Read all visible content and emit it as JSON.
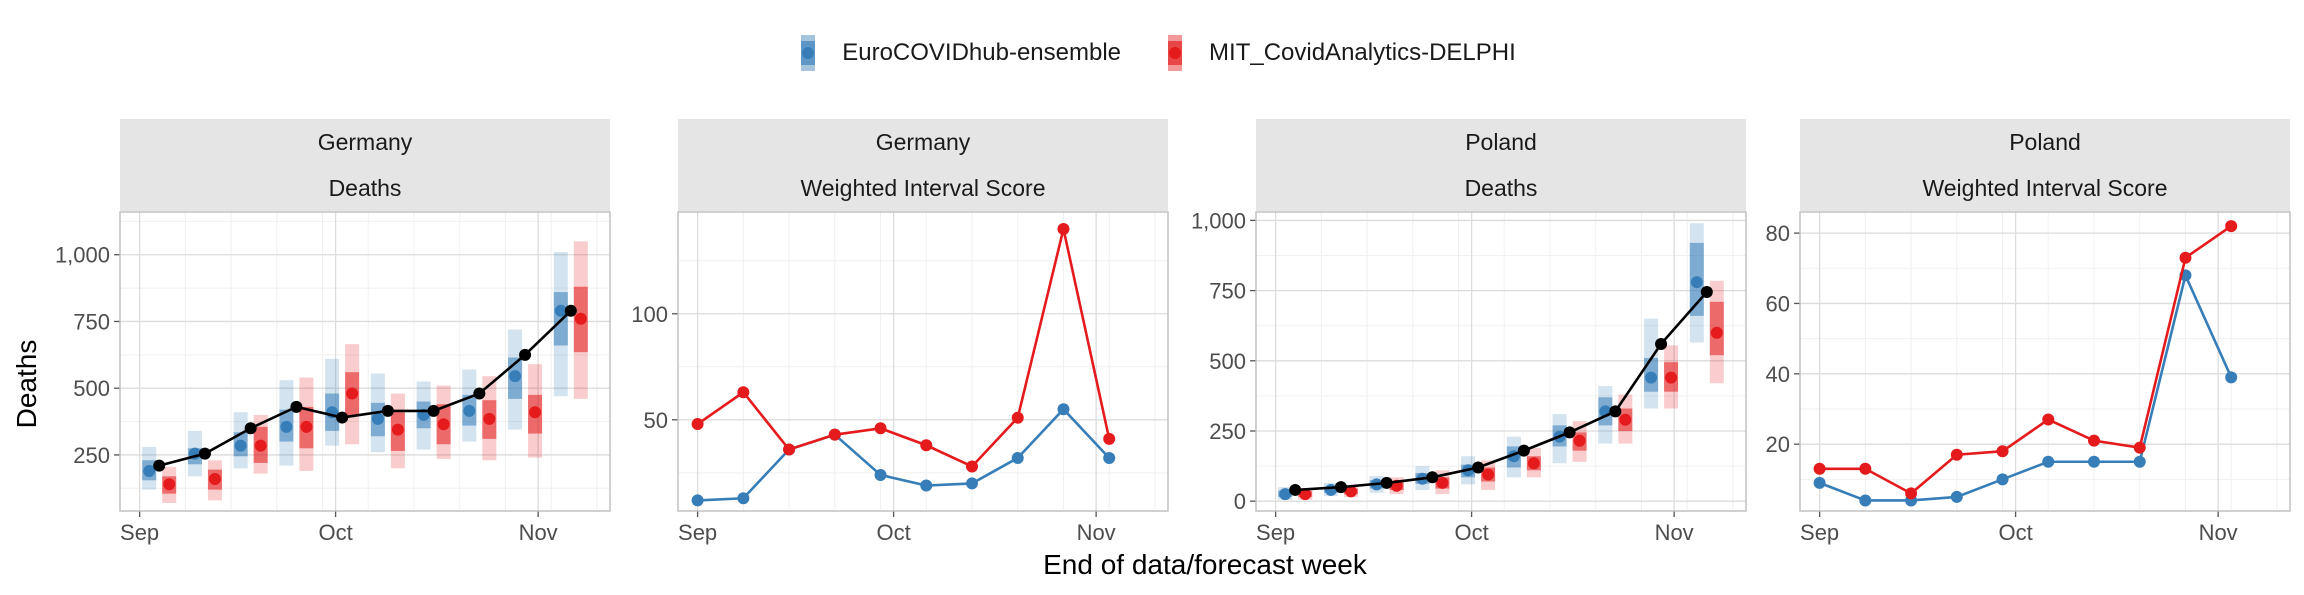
{
  "legend": {
    "items": [
      {
        "label": "EuroCOVIDhub-ensemble",
        "color": "#377eb8"
      },
      {
        "label": "MIT_CovidAnalytics-DELPHI",
        "color": "#e41a1c"
      }
    ]
  },
  "axes": {
    "xlabel": "End of data/forecast week",
    "ylabel": "Deaths"
  },
  "chart_data": [
    {
      "type": "line",
      "panel": 1,
      "strip_top": "Germany",
      "strip_bottom": "Deaths",
      "x_ticks": [
        "Sep",
        "Oct",
        "Nov"
      ],
      "y_ticks": [
        "250",
        "500",
        "750",
        "1,000"
      ],
      "ylim": [
        40,
        1160
      ],
      "x": [
        "2021-09-04",
        "2021-09-11",
        "2021-09-18",
        "2021-09-25",
        "2021-10-02",
        "2021-10-09",
        "2021-10-16",
        "2021-10-23",
        "2021-10-30",
        "2021-11-06"
      ],
      "observed": [
        210,
        255,
        350,
        430,
        390,
        415,
        415,
        480,
        625,
        790
      ],
      "series": [
        {
          "name": "EuroCOVIDhub-ensemble",
          "median": [
            190,
            255,
            285,
            355,
            410,
            385,
            400,
            415,
            545,
            790
          ],
          "q50": [
            [
              155,
              230
            ],
            [
              215,
              275
            ],
            [
              245,
              335
            ],
            [
              300,
              420
            ],
            [
              340,
              480
            ],
            [
              320,
              445
            ],
            [
              350,
              450
            ],
            [
              360,
              475
            ],
            [
              460,
              615
            ],
            [
              660,
              860
            ]
          ],
          "q95": [
            [
              120,
              280
            ],
            [
              170,
              340
            ],
            [
              200,
              410
            ],
            [
              210,
              530
            ],
            [
              285,
              610
            ],
            [
              260,
              555
            ],
            [
              270,
              525
            ],
            [
              300,
              570
            ],
            [
              345,
              720
            ],
            [
              470,
              1010
            ]
          ]
        },
        {
          "name": "MIT_CovidAnalytics-DELPHI",
          "median": [
            140,
            160,
            285,
            355,
            480,
            345,
            365,
            385,
            410,
            760
          ],
          "q50": [
            [
              105,
              170
            ],
            [
              120,
              195
            ],
            [
              220,
              355
            ],
            [
              275,
              430
            ],
            [
              395,
              560
            ],
            [
              265,
              410
            ],
            [
              290,
              440
            ],
            [
              310,
              455
            ],
            [
              330,
              475
            ],
            [
              635,
              880
            ]
          ],
          "q95": [
            [
              70,
              205
            ],
            [
              80,
              230
            ],
            [
              180,
              400
            ],
            [
              190,
              540
            ],
            [
              290,
              665
            ],
            [
              200,
              480
            ],
            [
              235,
              510
            ],
            [
              230,
              545
            ],
            [
              240,
              590
            ],
            [
              460,
              1050
            ]
          ]
        }
      ]
    },
    {
      "type": "line",
      "panel": 2,
      "strip_top": "Germany",
      "strip_bottom": "Weighted Interval Score",
      "x_ticks": [
        "Sep",
        "Oct",
        "Nov"
      ],
      "y_ticks": [
        "50",
        "100"
      ],
      "ylim": [
        7,
        148
      ],
      "x": [
        "2021-09-01",
        "2021-09-08",
        "2021-09-15",
        "2021-09-22",
        "2021-09-29",
        "2021-10-06",
        "2021-10-13",
        "2021-10-20",
        "2021-10-27",
        "2021-11-03"
      ],
      "series": [
        {
          "name": "EuroCOVIDhub-ensemble",
          "values": [
            12,
            13,
            36,
            43,
            24,
            19,
            20,
            32,
            55,
            32
          ]
        },
        {
          "name": "MIT_CovidAnalytics-DELPHI",
          "values": [
            48,
            63,
            36,
            43,
            46,
            38,
            28,
            51,
            140,
            41
          ]
        }
      ]
    },
    {
      "type": "line",
      "panel": 3,
      "strip_top": "Poland",
      "strip_bottom": "Deaths",
      "x_ticks": [
        "Sep",
        "Oct",
        "Nov"
      ],
      "y_ticks": [
        "0",
        "250",
        "500",
        "750",
        "1,000"
      ],
      "ylim": [
        -35,
        1030
      ],
      "x": [
        "2021-09-04",
        "2021-09-11",
        "2021-09-18",
        "2021-09-25",
        "2021-10-02",
        "2021-10-09",
        "2021-10-16",
        "2021-10-23",
        "2021-10-30",
        "2021-11-06"
      ],
      "observed": [
        40,
        50,
        65,
        85,
        120,
        180,
        245,
        320,
        560,
        745
      ],
      "series": [
        {
          "name": "EuroCOVIDhub-ensemble",
          "median": [
            25,
            40,
            60,
            80,
            110,
            160,
            230,
            320,
            440,
            780
          ],
          "q50": [
            [
              15,
              38
            ],
            [
              30,
              52
            ],
            [
              45,
              75
            ],
            [
              62,
              100
            ],
            [
              85,
              130
            ],
            [
              120,
              195
            ],
            [
              195,
              270
            ],
            [
              270,
              370
            ],
            [
              390,
              510
            ],
            [
              660,
              920
            ]
          ],
          "q95": [
            [
              5,
              50
            ],
            [
              18,
              65
            ],
            [
              30,
              90
            ],
            [
              40,
              125
            ],
            [
              60,
              160
            ],
            [
              85,
              230
            ],
            [
              135,
              310
            ],
            [
              205,
              410
            ],
            [
              330,
              650
            ],
            [
              565,
              990
            ]
          ]
        },
        {
          "name": "MIT_CovidAnalytics-DELPHI",
          "median": [
            25,
            35,
            55,
            65,
            95,
            135,
            215,
            290,
            440,
            600
          ],
          "q50": [
            [
              15,
              35
            ],
            [
              25,
              45
            ],
            [
              40,
              70
            ],
            [
              45,
              85
            ],
            [
              70,
              120
            ],
            [
              110,
              160
            ],
            [
              180,
              245
            ],
            [
              250,
              330
            ],
            [
              390,
              495
            ],
            [
              520,
              710
            ]
          ],
          "q95": [
            [
              5,
              45
            ],
            [
              15,
              55
            ],
            [
              25,
              85
            ],
            [
              25,
              110
            ],
            [
              40,
              145
            ],
            [
              85,
              190
            ],
            [
              140,
              285
            ],
            [
              205,
              380
            ],
            [
              330,
              555
            ],
            [
              420,
              785
            ]
          ]
        }
      ]
    },
    {
      "type": "line",
      "panel": 4,
      "strip_top": "Poland",
      "strip_bottom": "Weighted Interval Score",
      "x_ticks": [
        "Sep",
        "Oct",
        "Nov"
      ],
      "y_ticks": [
        "20",
        "40",
        "60",
        "80"
      ],
      "ylim": [
        1,
        86
      ],
      "x": [
        "2021-09-01",
        "2021-09-08",
        "2021-09-15",
        "2021-09-22",
        "2021-09-29",
        "2021-10-06",
        "2021-10-13",
        "2021-10-20",
        "2021-10-27",
        "2021-11-03"
      ],
      "series": [
        {
          "name": "EuroCOVIDhub-ensemble",
          "values": [
            9,
            4,
            4,
            5,
            10,
            15,
            15,
            15,
            68,
            39
          ]
        },
        {
          "name": "MIT_CovidAnalytics-DELPHI",
          "values": [
            13,
            13,
            6,
            17,
            18,
            27,
            21,
            19,
            73,
            82
          ]
        }
      ]
    }
  ]
}
